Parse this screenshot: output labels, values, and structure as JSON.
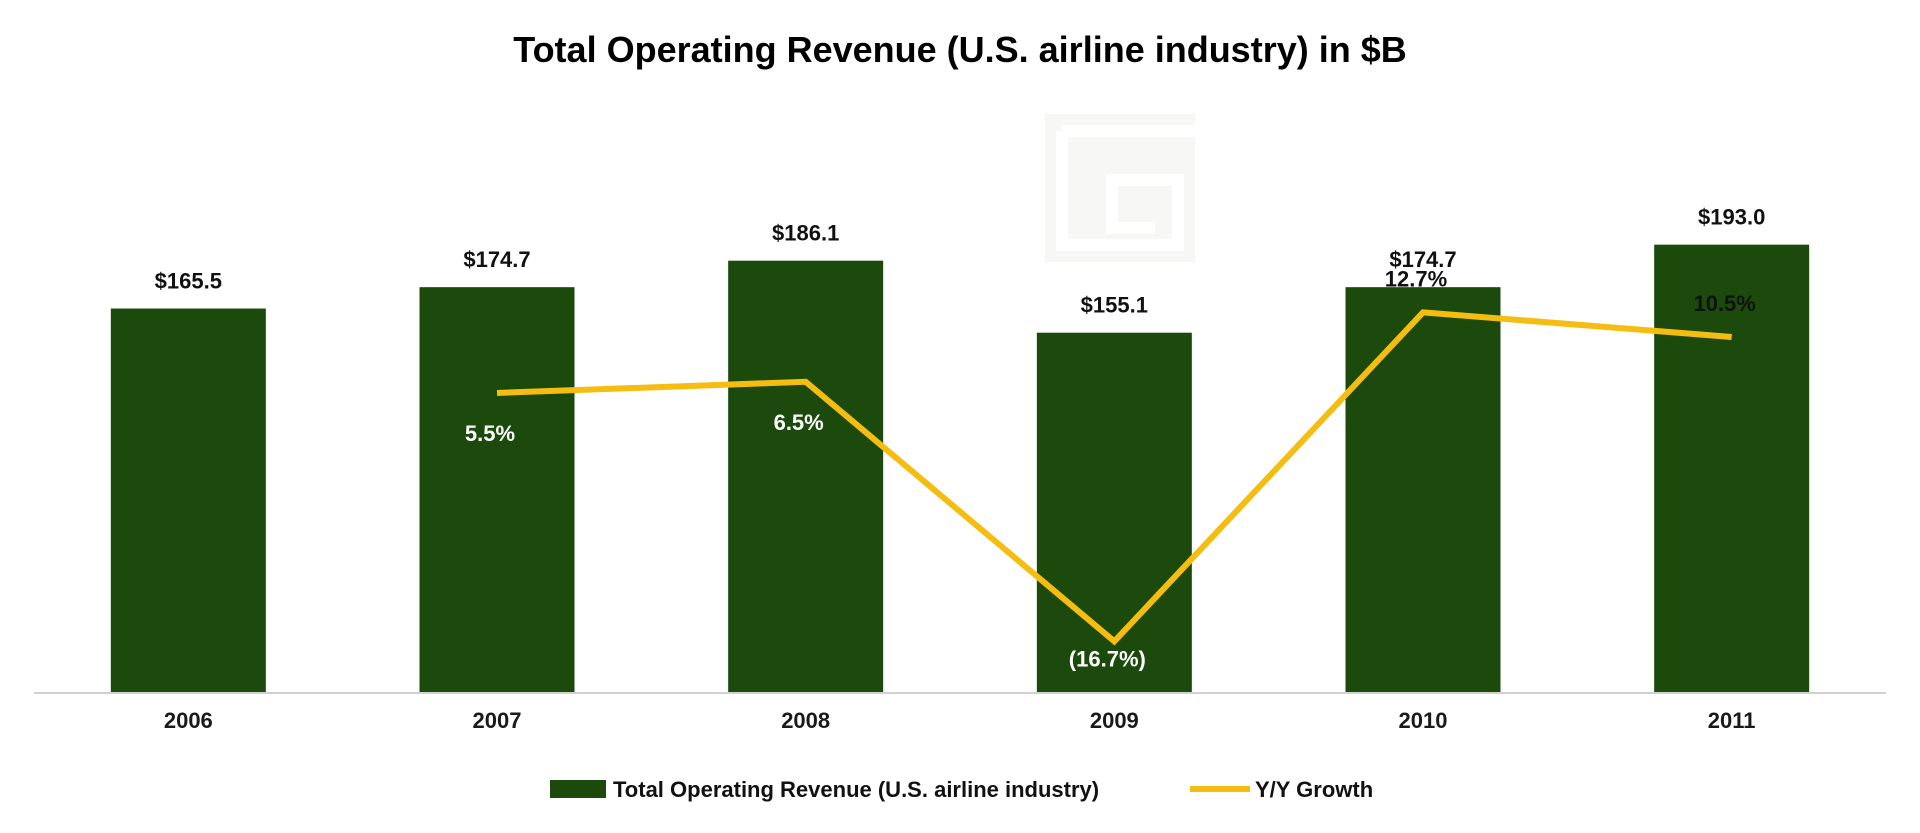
{
  "chart_data": {
    "type": "bar",
    "title": "Total Operating Revenue (U.S. airline industry) in $B",
    "xlabel": "",
    "ylabel": "",
    "categories": [
      "2006",
      "2007",
      "2008",
      "2009",
      "2010",
      "2011"
    ],
    "ylim": [
      0,
      200
    ],
    "series": [
      {
        "name": "Total Operating Revenue (U.S. airline industry)",
        "type": "bar",
        "color": "#1b4a0c",
        "values": [
          165.5,
          174.7,
          186.1,
          155.1,
          174.7,
          193.0
        ],
        "labels": [
          "$165.5",
          "$174.7",
          "$186.1",
          "$155.1",
          "$174.7",
          "$193.0"
        ]
      },
      {
        "name": "Y/Y Growth",
        "type": "line",
        "color": "#f5bd12",
        "x": [
          "2007",
          "2008",
          "2009",
          "2010",
          "2011"
        ],
        "values": [
          5.5,
          6.5,
          -16.7,
          12.7,
          10.5
        ],
        "labels": [
          "5.5%",
          "6.5%",
          "(16.7%)",
          "12.7%",
          "10.5%"
        ],
        "label_colors": [
          "#ffffff",
          "#ffffff",
          "#ffffff",
          "#111111",
          "#111111"
        ],
        "ylim": [
          -20,
          20
        ]
      }
    ],
    "grid": false,
    "legend": "bottom"
  }
}
